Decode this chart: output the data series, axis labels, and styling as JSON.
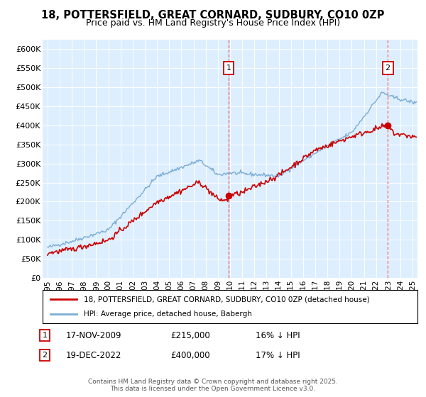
{
  "title": "18, POTTERSFIELD, GREAT CORNARD, SUDBURY, CO10 0ZP",
  "subtitle": "Price paid vs. HM Land Registry's House Price Index (HPI)",
  "ylim": [
    0,
    620000
  ],
  "yticks": [
    0,
    50000,
    100000,
    150000,
    200000,
    250000,
    300000,
    350000,
    400000,
    450000,
    500000,
    550000,
    600000
  ],
  "ytick_labels": [
    "£0",
    "£50K",
    "£100K",
    "£150K",
    "£200K",
    "£250K",
    "£300K",
    "£350K",
    "£400K",
    "£450K",
    "£500K",
    "£550K",
    "£600K"
  ],
  "xlim_start": 1994.6,
  "xlim_end": 2025.4,
  "bg_color": "#ddeeff",
  "line_color_property": "#cc0000",
  "line_color_hpi": "#7aadd4",
  "vline_color": "#dd4444",
  "marker1_x": 2009.88,
  "marker1_y": 215000,
  "marker2_x": 2022.96,
  "marker2_y": 400000,
  "marker1_label": "17-NOV-2009",
  "marker1_price": "£215,000",
  "marker1_note": "16% ↓ HPI",
  "marker2_label": "19-DEC-2022",
  "marker2_price": "£400,000",
  "marker2_note": "17% ↓ HPI",
  "legend_line1": "18, POTTERSFIELD, GREAT CORNARD, SUDBURY, CO10 0ZP (detached house)",
  "legend_line2": "HPI: Average price, detached house, Babergh",
  "footer": "Contains HM Land Registry data © Crown copyright and database right 2025.\nThis data is licensed under the Open Government Licence v3.0."
}
